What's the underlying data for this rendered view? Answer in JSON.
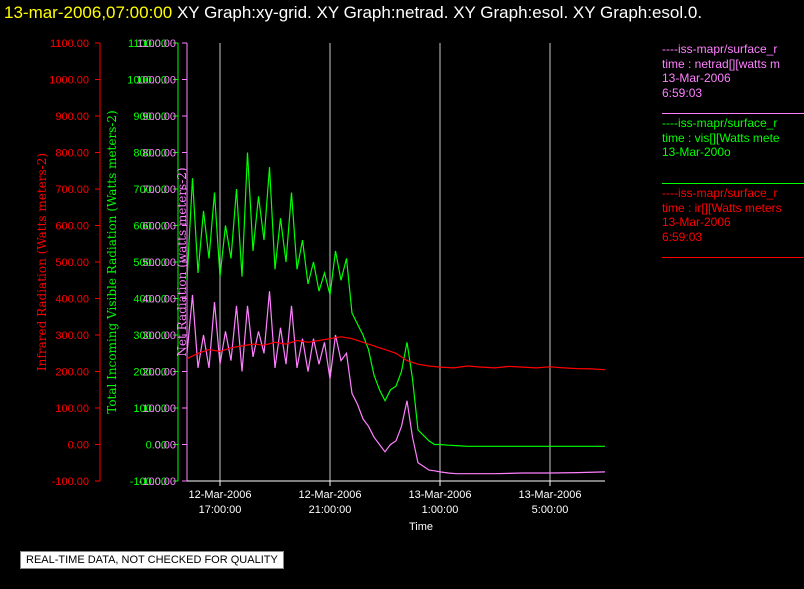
{
  "header": {
    "timestamp": "13-mar-2006,07:00:00",
    "graphs": "XY Graph:xy-grid.  XY Graph:netrad.  XY Graph:esol.  XY Graph:esol.0."
  },
  "notice": "REAL-TIME DATA, NOT CHECKED FOR QUALITY",
  "legend": [
    {
      "lines": [
        "----iss-mapr/surface_r",
        "time : netrad[][watts m",
        "13-Mar-2006",
        "6:59:03"
      ],
      "color": "#ff80ff"
    },
    {
      "lines": [
        "----iss-mapr/surface_r",
        "time : vis[][Watts mete",
        "13-Mar-200o"
      ],
      "color": "#00ff00"
    },
    {
      "lines": [
        "----iss-mapr/surface_r",
        "time : ir[][Watts meters",
        "13-Mar-2006",
        "6:59:03"
      ],
      "color": "#ff0000"
    }
  ],
  "chart_data": {
    "type": "line",
    "xlabel": "Time",
    "x_ticks": [
      {
        "hours": 0,
        "line1": "12-Mar-2006",
        "line2": "17:00:00"
      },
      {
        "hours": 4,
        "line1": "12-Mar-2006",
        "line2": "21:00:00"
      },
      {
        "hours": 8,
        "line1": "13-Mar-2006",
        "line2": "1:00:00"
      },
      {
        "hours": 12,
        "line1": "13-Mar-2006",
        "line2": "5:00:00"
      }
    ],
    "xlim_hours": [
      -1.2,
      14.0
    ],
    "ylim": [
      -100,
      1100
    ],
    "y_ticks": [
      "-100.00",
      "0.00",
      "100.00",
      "200.00",
      "300.00",
      "400.00",
      "500.00",
      "600.00",
      "700.00",
      "800.00",
      "900.00",
      "1000.00",
      "1100.00"
    ],
    "axes": [
      {
        "label": "Infrared Radiation (Watts meters-2)",
        "color": "#ff0000"
      },
      {
        "label": "Total Incoming Visible Radiation (Watts meters-2)",
        "color": "#00ff00"
      },
      {
        "label": "Net Radiation (watts meters-2)",
        "color": "#ff80ff"
      }
    ],
    "grid_vertical": true,
    "series": [
      {
        "axis": "vis",
        "color": "#00ff00",
        "x": [
          -1.2,
          -1.0,
          -0.8,
          -0.6,
          -0.4,
          -0.2,
          0.0,
          0.2,
          0.4,
          0.6,
          0.8,
          1.0,
          1.2,
          1.4,
          1.6,
          1.8,
          2.0,
          2.2,
          2.4,
          2.6,
          2.8,
          3.0,
          3.2,
          3.4,
          3.6,
          3.8,
          4.0,
          4.2,
          4.4,
          4.6,
          4.8,
          5.0,
          5.2,
          5.4,
          5.6,
          5.8,
          6.0,
          6.2,
          6.4,
          6.6,
          6.8,
          7.0,
          7.2,
          7.4,
          7.6,
          7.8,
          8.0,
          8.3,
          8.6,
          9,
          9.5,
          10,
          11,
          12,
          13,
          14
        ],
        "y": [
          450,
          730,
          470,
          640,
          510,
          690,
          460,
          600,
          510,
          700,
          460,
          800,
          530,
          680,
          560,
          760,
          480,
          620,
          500,
          690,
          480,
          560,
          440,
          500,
          420,
          470,
          410,
          530,
          450,
          510,
          360,
          330,
          300,
          260,
          190,
          150,
          120,
          150,
          160,
          200,
          280,
          180,
          40,
          25,
          10,
          0,
          0,
          -2,
          -3,
          -5,
          -5,
          -5,
          -5,
          -5,
          -5,
          -5
        ]
      },
      {
        "axis": "net",
        "color": "#ff80ff",
        "x": [
          -1.2,
          -1.0,
          -0.8,
          -0.6,
          -0.4,
          -0.2,
          0.0,
          0.2,
          0.4,
          0.6,
          0.8,
          1.0,
          1.2,
          1.4,
          1.6,
          1.8,
          2.0,
          2.2,
          2.4,
          2.6,
          2.8,
          3.0,
          3.2,
          3.4,
          3.6,
          3.8,
          4.0,
          4.2,
          4.4,
          4.6,
          4.8,
          5.0,
          5.2,
          5.4,
          5.6,
          5.8,
          6.0,
          6.2,
          6.4,
          6.6,
          6.8,
          7.0,
          7.2,
          7.4,
          7.6,
          7.8,
          8.0,
          8.3,
          8.6,
          9,
          9.5,
          10,
          11,
          12,
          13,
          14
        ],
        "y": [
          250,
          410,
          210,
          300,
          210,
          390,
          220,
          310,
          230,
          380,
          200,
          380,
          240,
          310,
          250,
          420,
          210,
          320,
          220,
          380,
          210,
          290,
          200,
          290,
          220,
          280,
          180,
          300,
          230,
          250,
          140,
          110,
          70,
          50,
          20,
          0,
          -20,
          0,
          10,
          50,
          120,
          20,
          -50,
          -60,
          -70,
          -72,
          -75,
          -78,
          -80,
          -80,
          -80,
          -80,
          -78,
          -78,
          -77,
          -75
        ]
      },
      {
        "axis": "ir",
        "color": "#ff0000",
        "x": [
          -1.2,
          -0.8,
          -0.4,
          0.0,
          0.4,
          0.8,
          1.2,
          1.6,
          2.0,
          2.4,
          2.8,
          3.2,
          3.6,
          4.0,
          4.4,
          4.8,
          5.2,
          5.6,
          6.0,
          6.4,
          6.8,
          7.2,
          7.6,
          8.0,
          8.5,
          9,
          9.5,
          10,
          10.5,
          11,
          11.5,
          12,
          12.5,
          13,
          13.5,
          14
        ],
        "y": [
          235,
          250,
          260,
          255,
          265,
          270,
          275,
          272,
          280,
          275,
          285,
          280,
          285,
          290,
          295,
          290,
          280,
          270,
          260,
          250,
          230,
          220,
          215,
          212,
          210,
          215,
          212,
          210,
          214,
          212,
          210,
          213,
          210,
          208,
          207,
          205
        ]
      }
    ]
  }
}
